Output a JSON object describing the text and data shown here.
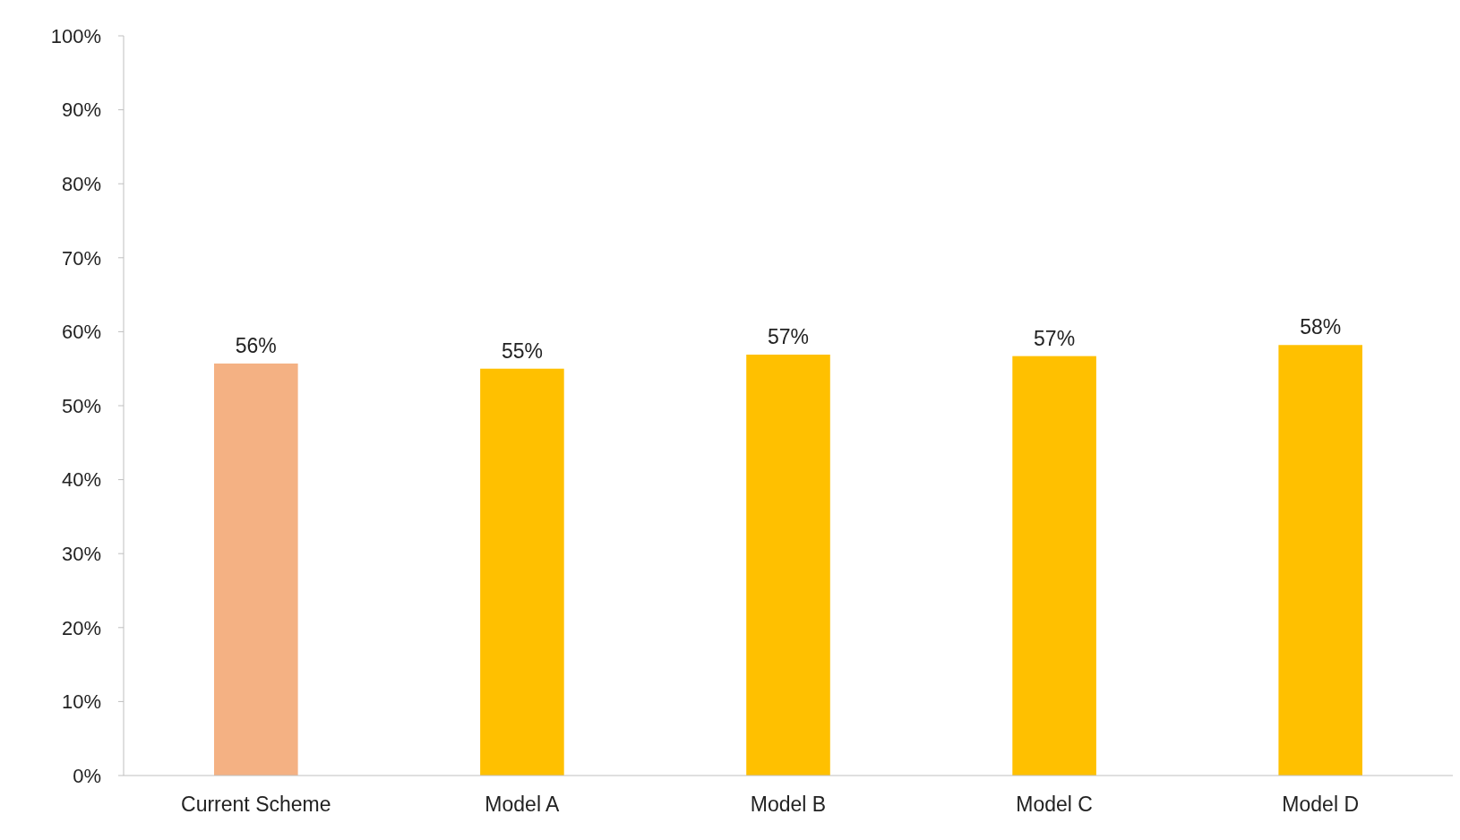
{
  "chart_data": {
    "type": "bar",
    "categories": [
      "Current Scheme",
      "Model A",
      "Model B",
      "Model C",
      "Model D"
    ],
    "values": [
      55.7,
      55.0,
      56.9,
      56.7,
      58.2
    ],
    "colors": [
      "#f4b183",
      "#ffc000",
      "#ffc000",
      "#ffc000",
      "#ffc000"
    ],
    "value_labels": [
      "56%",
      "55%",
      "57%",
      "57%",
      "58%"
    ],
    "ylim": [
      0,
      100
    ],
    "yticks": [
      {
        "value": 0,
        "label": "0%"
      },
      {
        "value": 10,
        "label": "10%"
      },
      {
        "value": 20,
        "label": "20%"
      },
      {
        "value": 30,
        "label": "30%"
      },
      {
        "value": 40,
        "label": "40%"
      },
      {
        "value": 50,
        "label": "50%"
      },
      {
        "value": 60,
        "label": "60%"
      },
      {
        "value": 70,
        "label": "70%"
      },
      {
        "value": 80,
        "label": "80%"
      },
      {
        "value": 90,
        "label": "90%"
      },
      {
        "value": 100,
        "label": "100%"
      }
    ],
    "grid": false
  }
}
